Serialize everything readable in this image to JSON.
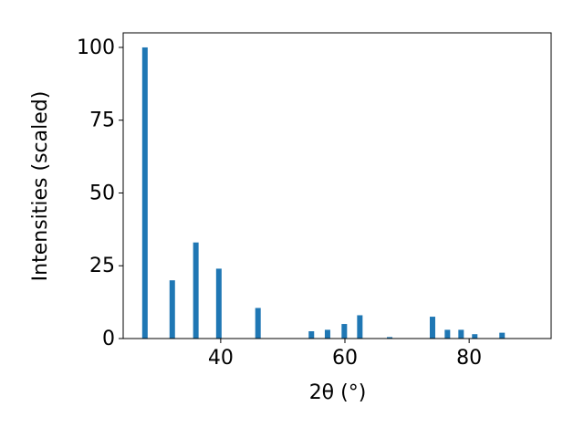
{
  "chart_data": {
    "type": "bar",
    "x_label": "2θ (°)",
    "y_label": "Intensities (scaled)",
    "x": [
      27.8,
      32.2,
      36.0,
      39.7,
      46.0,
      54.6,
      57.2,
      59.9,
      62.4,
      67.2,
      74.1,
      76.5,
      78.7,
      80.9,
      85.3
    ],
    "values": [
      100,
      20,
      33,
      24,
      10.5,
      2.5,
      3,
      5,
      8,
      0.5,
      7.5,
      3,
      3,
      1.5,
      2
    ],
    "color": "#1f77b4",
    "xlim": [
      24.3,
      93.2
    ],
    "xticks": [
      40,
      60,
      80
    ],
    "ylim": [
      0,
      105
    ],
    "yticks": [
      0,
      25,
      50,
      75,
      100
    ]
  }
}
